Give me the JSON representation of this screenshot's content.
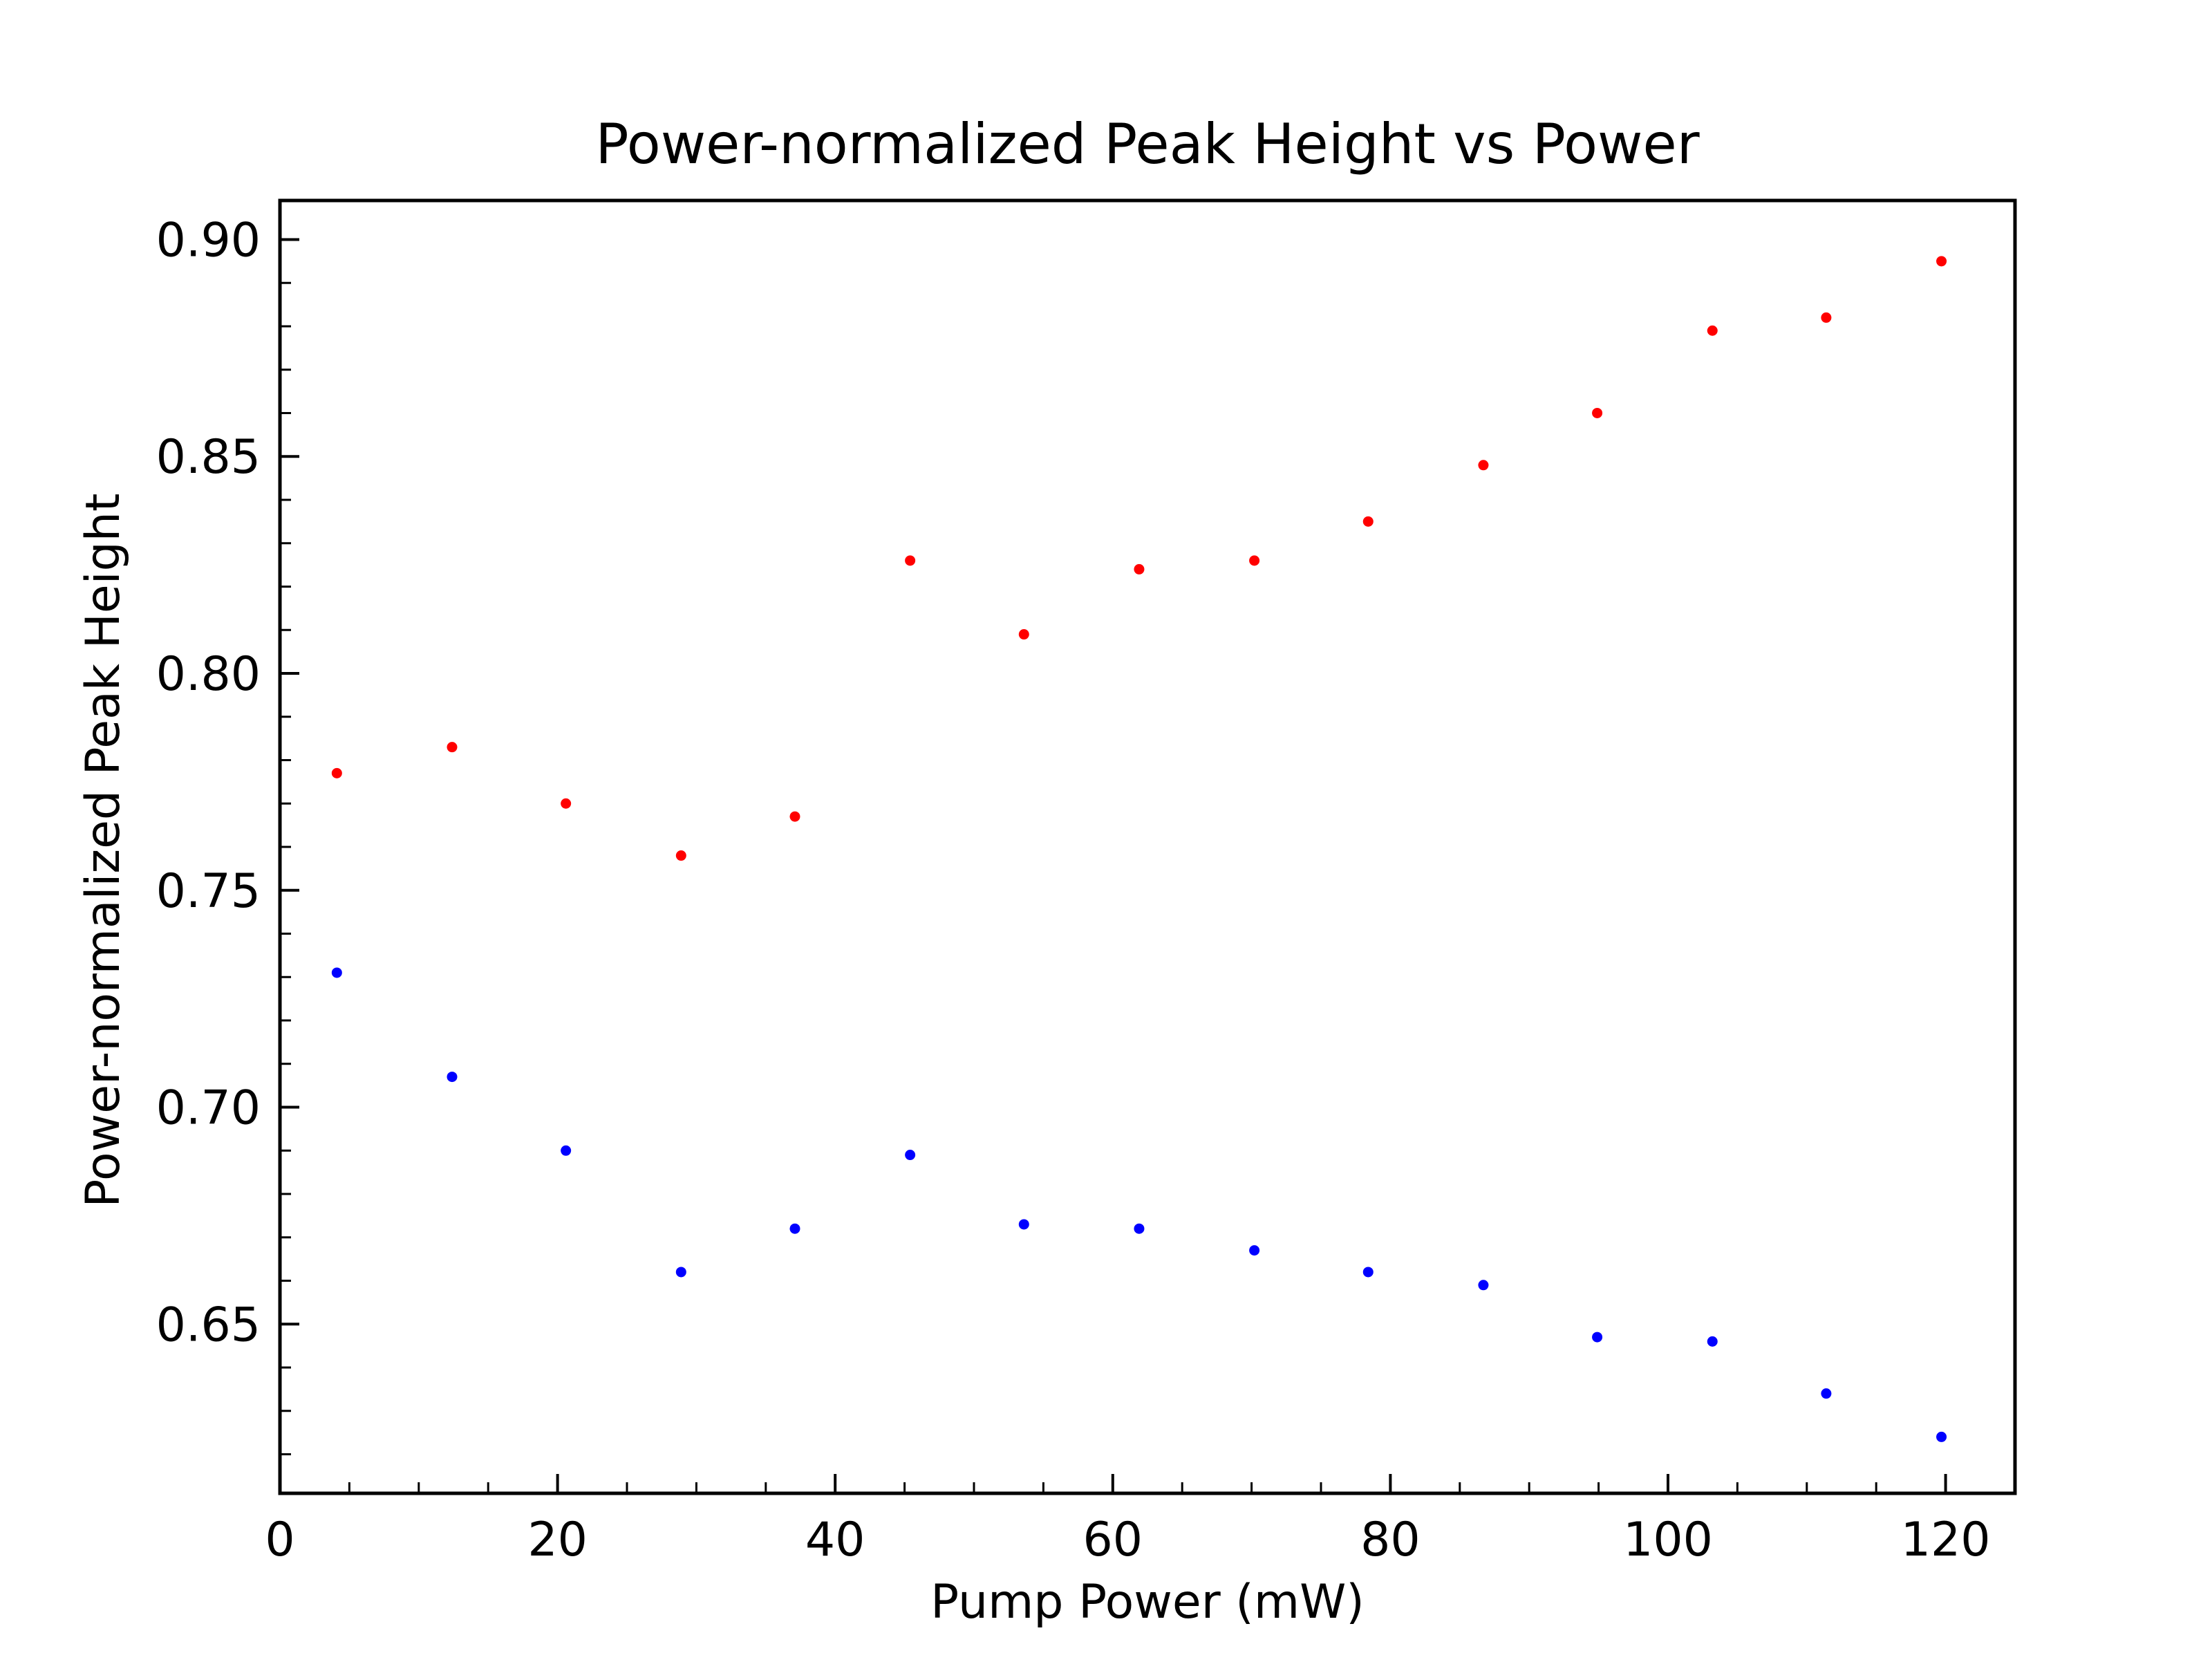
{
  "chart_data": {
    "type": "scatter",
    "title": "Power-normalized Peak Height vs Power",
    "xlabel": "Pump Power (mW)",
    "ylabel": "Power-normalized Peak Height",
    "xlim": [
      0,
      125
    ],
    "ylim": [
      0.611,
      0.909
    ],
    "xticks": [
      0,
      20,
      40,
      60,
      80,
      100,
      120
    ],
    "xtick_labels": [
      "0",
      "20",
      "40",
      "60",
      "80",
      "100",
      "120"
    ],
    "yticks": [
      0.65,
      0.7,
      0.75,
      0.8,
      0.85,
      0.9
    ],
    "ytick_labels": [
      "0.65",
      "0.70",
      "0.75",
      "0.80",
      "0.85",
      "0.90"
    ],
    "tick_direction": "in",
    "grid": false,
    "legend": "none",
    "x": [
      4.1,
      12.4,
      20.6,
      28.9,
      37.1,
      45.4,
      53.6,
      61.9,
      70.2,
      78.4,
      86.7,
      94.9,
      103.2,
      111.4,
      119.7
    ],
    "series": [
      {
        "color": "#ff0000",
        "values": [
          0.777,
          0.783,
          0.77,
          0.758,
          0.767,
          0.826,
          0.809,
          0.824,
          0.826,
          0.835,
          0.848,
          0.86,
          0.879,
          0.882,
          0.895
        ]
      },
      {
        "color": "#0000ff",
        "values": [
          0.731,
          0.707,
          0.69,
          0.662,
          0.672,
          0.689,
          0.673,
          0.672,
          0.667,
          0.662,
          0.659,
          0.647,
          0.646,
          0.634,
          0.624
        ]
      }
    ]
  }
}
